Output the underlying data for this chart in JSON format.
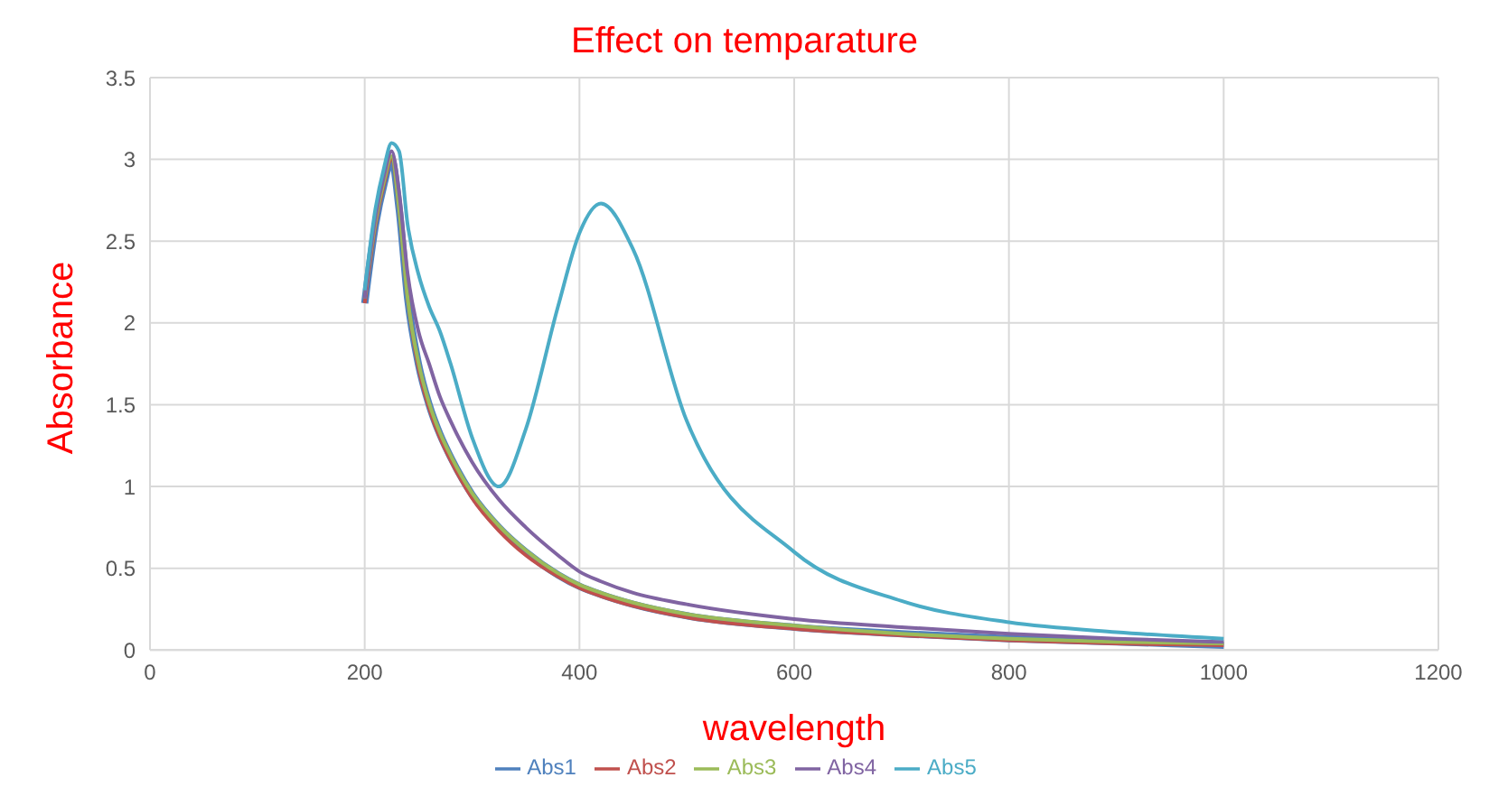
{
  "chart_data": {
    "type": "line",
    "title": "Effect on temparature",
    "xlabel": "wavelength",
    "ylabel": "Absorbance",
    "x": [
      200,
      210,
      218,
      225,
      232,
      240,
      250,
      260,
      270,
      280,
      300,
      325,
      350,
      380,
      400,
      420,
      450,
      500,
      600,
      700,
      800,
      900,
      1000
    ],
    "series": [
      {
        "name": "Abs1",
        "color": "#4f81bd",
        "values": [
          2.12,
          2.6,
          2.85,
          3.0,
          2.7,
          2.15,
          1.75,
          1.5,
          1.32,
          1.18,
          0.95,
          0.75,
          0.6,
          0.46,
          0.39,
          0.34,
          0.28,
          0.21,
          0.14,
          0.1,
          0.07,
          0.05,
          0.03
        ]
      },
      {
        "name": "Abs2",
        "color": "#c0504d",
        "values": [
          2.12,
          2.6,
          2.85,
          3.0,
          2.7,
          2.15,
          1.73,
          1.48,
          1.3,
          1.16,
          0.93,
          0.73,
          0.58,
          0.45,
          0.38,
          0.33,
          0.27,
          0.2,
          0.13,
          0.09,
          0.06,
          0.04,
          0.03
        ]
      },
      {
        "name": "Abs3",
        "color": "#9bbb59",
        "values": [
          2.15,
          2.62,
          2.87,
          3.02,
          2.7,
          2.15,
          1.76,
          1.51,
          1.33,
          1.19,
          0.96,
          0.76,
          0.61,
          0.47,
          0.4,
          0.35,
          0.29,
          0.22,
          0.15,
          0.1,
          0.07,
          0.05,
          0.04
        ]
      },
      {
        "name": "Abs4",
        "color": "#8064a2",
        "values": [
          2.15,
          2.65,
          2.9,
          3.05,
          2.8,
          2.3,
          1.95,
          1.75,
          1.55,
          1.4,
          1.15,
          0.92,
          0.75,
          0.58,
          0.48,
          0.42,
          0.35,
          0.28,
          0.19,
          0.14,
          0.1,
          0.07,
          0.05
        ]
      },
      {
        "name": "Abs5",
        "color": "#4bacc6",
        "values": [
          2.2,
          2.7,
          2.95,
          3.1,
          3.05,
          2.6,
          2.3,
          2.1,
          1.95,
          1.75,
          1.3,
          1.0,
          1.35,
          2.1,
          2.55,
          2.73,
          2.45,
          1.4,
          0.6,
          0.3,
          0.17,
          0.11,
          0.07
        ]
      }
    ],
    "xlim": [
      0,
      1200
    ],
    "xticks": [
      0,
      200,
      400,
      600,
      800,
      1000,
      1200
    ],
    "ylim": [
      0,
      3.5
    ],
    "yticks": [
      0,
      0.5,
      1,
      1.5,
      2,
      2.5,
      3,
      3.5
    ],
    "grid": true,
    "legend": "bottom",
    "marker": "none",
    "line_style": "solid"
  }
}
